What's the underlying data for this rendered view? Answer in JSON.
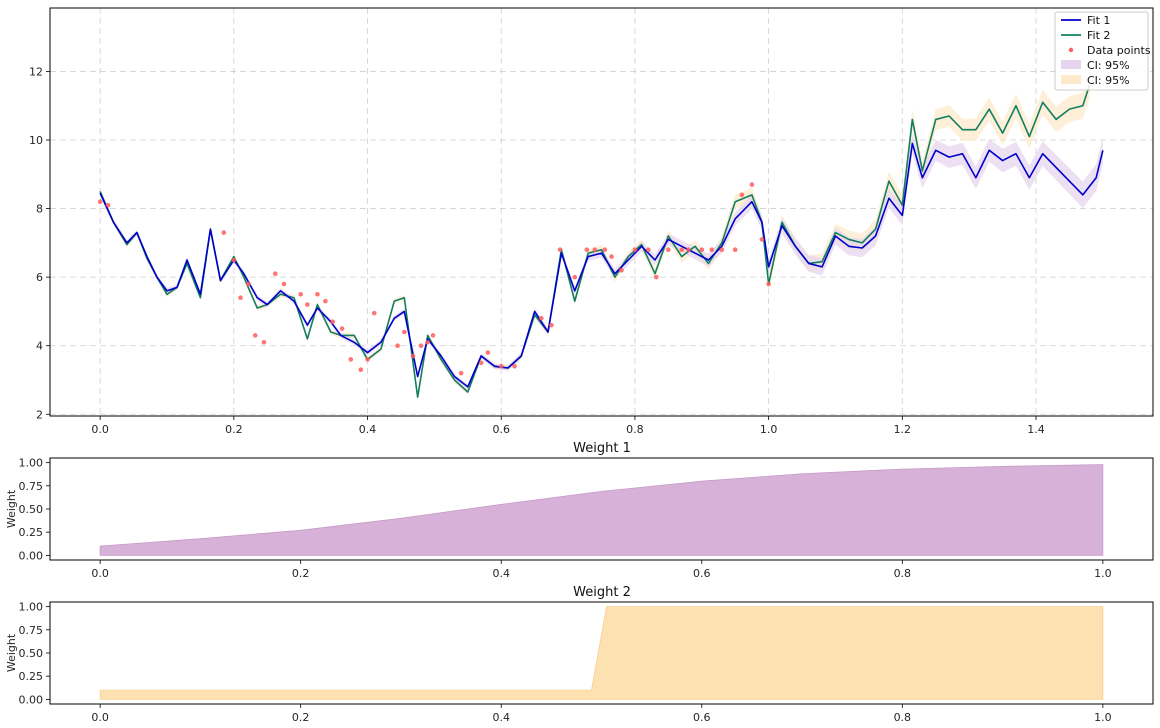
{
  "colors": {
    "fit1": "#0000cc",
    "fit2": "#117f5f",
    "data": "#ff5c5c",
    "ci1_fill": "#e5d5ee",
    "ci2_fill": "#fdeacb",
    "w1_fill": "#d8b1d9",
    "w2_fill": "#fde1b1"
  },
  "chart_data": [
    {
      "type": "line",
      "grid": true,
      "legend_position": "top-right",
      "xlim": [
        -0.075,
        1.575
      ],
      "ylim": [
        1.95,
        13.85
      ],
      "xticks": [
        0.0,
        0.2,
        0.4,
        0.6,
        0.8,
        1.0,
        1.2,
        1.4
      ],
      "xtick_labels": [
        "0.0",
        "0.2",
        "0.4",
        "0.6",
        "0.8",
        "1.0",
        "1.2",
        "1.4"
      ],
      "yticks": [
        2,
        4,
        6,
        8,
        10,
        12
      ],
      "ytick_labels": [
        "2",
        "4",
        "6",
        "8",
        "10",
        "12"
      ],
      "legend": [
        "Fit 1",
        "Fit 2",
        "Data points",
        "CI: 95%",
        "CI: 95%"
      ],
      "series": [
        {
          "name": "Fit 1",
          "x": [
            0.0,
            0.02,
            0.04,
            0.055,
            0.07,
            0.085,
            0.1,
            0.115,
            0.13,
            0.15,
            0.165,
            0.18,
            0.2,
            0.215,
            0.235,
            0.25,
            0.27,
            0.29,
            0.31,
            0.325,
            0.345,
            0.36,
            0.38,
            0.4,
            0.42,
            0.44,
            0.455,
            0.475,
            0.49,
            0.51,
            0.53,
            0.55,
            0.57,
            0.59,
            0.61,
            0.63,
            0.65,
            0.67,
            0.69,
            0.71,
            0.73,
            0.75,
            0.77,
            0.79,
            0.81,
            0.83,
            0.85,
            0.87,
            0.89,
            0.91,
            0.93,
            0.95,
            0.975,
            0.99,
            1.0,
            1.02,
            1.04,
            1.06,
            1.08,
            1.1,
            1.12,
            1.14,
            1.16,
            1.18,
            1.2,
            1.215,
            1.23,
            1.25,
            1.27,
            1.29,
            1.31,
            1.33,
            1.35,
            1.37,
            1.39,
            1.41,
            1.43,
            1.45,
            1.47,
            1.49,
            1.5
          ],
          "y": [
            8.45,
            7.6,
            7.0,
            7.3,
            6.6,
            6.0,
            5.6,
            5.7,
            6.5,
            5.5,
            7.4,
            5.9,
            6.5,
            6.1,
            5.4,
            5.2,
            5.6,
            5.3,
            4.6,
            5.1,
            4.7,
            4.3,
            4.1,
            3.8,
            4.1,
            4.8,
            5.0,
            3.1,
            4.2,
            3.7,
            3.1,
            2.8,
            3.7,
            3.4,
            3.35,
            3.7,
            5.0,
            4.4,
            6.7,
            5.6,
            6.6,
            6.7,
            6.1,
            6.5,
            6.9,
            6.5,
            7.1,
            6.9,
            6.7,
            6.5,
            6.9,
            7.7,
            8.2,
            7.6,
            6.3,
            7.5,
            6.9,
            6.4,
            6.3,
            7.2,
            6.9,
            6.85,
            7.2,
            8.3,
            7.8,
            9.9,
            8.9,
            9.7,
            9.5,
            9.6,
            8.9,
            9.7,
            9.4,
            9.6,
            8.9,
            9.6,
            9.2,
            8.8,
            8.4,
            8.9,
            9.7
          ]
        },
        {
          "name": "Fit 2",
          "x": [
            0.0,
            0.02,
            0.04,
            0.055,
            0.07,
            0.085,
            0.1,
            0.115,
            0.13,
            0.15,
            0.165,
            0.18,
            0.2,
            0.215,
            0.235,
            0.25,
            0.27,
            0.29,
            0.31,
            0.325,
            0.345,
            0.36,
            0.38,
            0.4,
            0.42,
            0.44,
            0.455,
            0.475,
            0.49,
            0.51,
            0.53,
            0.55,
            0.57,
            0.59,
            0.61,
            0.63,
            0.65,
            0.67,
            0.69,
            0.71,
            0.73,
            0.75,
            0.77,
            0.79,
            0.81,
            0.83,
            0.85,
            0.87,
            0.89,
            0.91,
            0.93,
            0.95,
            0.975,
            0.99,
            1.0,
            1.02,
            1.04,
            1.06,
            1.08,
            1.1,
            1.12,
            1.14,
            1.16,
            1.18,
            1.2,
            1.215,
            1.23,
            1.25,
            1.27,
            1.29,
            1.31,
            1.33,
            1.35,
            1.37,
            1.39,
            1.41,
            1.43,
            1.45,
            1.47,
            1.48
          ],
          "y": [
            8.5,
            7.6,
            6.95,
            7.3,
            6.55,
            6.0,
            5.5,
            5.7,
            6.4,
            5.4,
            7.4,
            5.9,
            6.6,
            6.0,
            5.1,
            5.2,
            5.5,
            5.4,
            4.2,
            5.2,
            4.4,
            4.3,
            4.3,
            3.6,
            3.9,
            5.3,
            5.4,
            2.5,
            4.3,
            3.6,
            3.0,
            2.65,
            3.7,
            3.4,
            3.35,
            3.7,
            4.9,
            4.4,
            6.8,
            5.3,
            6.7,
            6.8,
            6.0,
            6.6,
            6.95,
            6.1,
            7.2,
            6.6,
            6.9,
            6.4,
            7.0,
            8.2,
            8.4,
            7.6,
            5.8,
            7.6,
            6.9,
            6.4,
            6.45,
            7.3,
            7.1,
            7.0,
            7.4,
            8.8,
            8.1,
            10.6,
            9.1,
            10.6,
            10.7,
            10.3,
            10.3,
            10.9,
            10.2,
            11.0,
            10.1,
            11.1,
            10.6,
            10.9,
            11.0,
            11.6
          ]
        },
        {
          "name": "Data points",
          "x": [
            0.0,
            0.012,
            0.185,
            0.2,
            0.21,
            0.222,
            0.232,
            0.245,
            0.262,
            0.275,
            0.3,
            0.31,
            0.325,
            0.337,
            0.348,
            0.362,
            0.375,
            0.39,
            0.4,
            0.41,
            0.445,
            0.455,
            0.468,
            0.48,
            0.49,
            0.498,
            0.54,
            0.57,
            0.58,
            0.6,
            0.62,
            0.66,
            0.675,
            0.688,
            0.71,
            0.728,
            0.74,
            0.755,
            0.765,
            0.78,
            0.8,
            0.82,
            0.832,
            0.85,
            0.87,
            0.88,
            0.9,
            0.915,
            0.93,
            0.95,
            0.96,
            0.975,
            0.99,
            1.0
          ],
          "y": [
            8.2,
            8.1,
            7.3,
            6.5,
            5.4,
            5.8,
            4.3,
            4.1,
            6.1,
            5.8,
            5.5,
            5.2,
            5.5,
            5.3,
            4.7,
            4.5,
            3.6,
            3.3,
            3.6,
            4.95,
            4.0,
            4.4,
            3.7,
            4.0,
            4.1,
            4.3,
            3.2,
            3.5,
            3.8,
            3.4,
            3.4,
            4.8,
            4.6,
            6.8,
            6.0,
            6.8,
            6.8,
            6.8,
            6.6,
            6.2,
            6.8,
            6.8,
            6.0,
            6.8,
            6.8,
            6.8,
            6.8,
            6.8,
            6.8,
            6.8,
            8.4,
            8.7,
            7.1,
            5.8
          ]
        }
      ]
    },
    {
      "type": "area",
      "title": "Weight 1",
      "ylabel": "Weight",
      "grid": false,
      "xlim": [
        -0.05,
        1.05
      ],
      "ylim": [
        -0.05,
        1.05
      ],
      "xticks": [
        0.0,
        0.2,
        0.4,
        0.6,
        0.8,
        1.0
      ],
      "xtick_labels": [
        "0.0",
        "0.2",
        "0.4",
        "0.6",
        "0.8",
        "1.0"
      ],
      "yticks": [
        0.0,
        0.25,
        0.5,
        0.75,
        1.0
      ],
      "ytick_labels": [
        "0.00",
        "0.25",
        "0.50",
        "0.75",
        "1.00"
      ],
      "series": [
        {
          "x": [
            0.0,
            0.1,
            0.2,
            0.3,
            0.4,
            0.5,
            0.6,
            0.7,
            0.8,
            0.9,
            1.0
          ],
          "y": [
            0.1,
            0.18,
            0.27,
            0.4,
            0.55,
            0.69,
            0.8,
            0.88,
            0.93,
            0.96,
            0.98
          ]
        }
      ]
    },
    {
      "type": "area",
      "title": "Weight 2",
      "ylabel": "Weight",
      "grid": false,
      "xlim": [
        -0.05,
        1.05
      ],
      "ylim": [
        -0.05,
        1.05
      ],
      "xticks": [
        0.0,
        0.2,
        0.4,
        0.6,
        0.8,
        1.0
      ],
      "xtick_labels": [
        "0.0",
        "0.2",
        "0.4",
        "0.6",
        "0.8",
        "1.0"
      ],
      "yticks": [
        0.0,
        0.25,
        0.5,
        0.75,
        1.0
      ],
      "ytick_labels": [
        "0.00",
        "0.25",
        "0.50",
        "0.75",
        "1.00"
      ],
      "series": [
        {
          "x": [
            0.0,
            0.49,
            0.505,
            1.0
          ],
          "y": [
            0.1,
            0.1,
            1.0,
            1.0
          ]
        }
      ]
    }
  ]
}
